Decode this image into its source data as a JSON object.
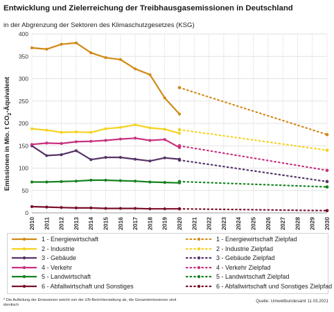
{
  "title": "Entwicklung und Zielerreichung der Treibhausgasemissionen in Deutschland",
  "subtitle": "in der Abgrenzung der Sektoren des Klimaschutzgesetzes (KSG)",
  "ylabel_main": "Emissionen in Mio. t CO",
  "ylabel_sub": "2",
  "ylabel_tail": "-Äquivalent",
  "footnote": "* Die Aufteilung der Emissionen weicht von der UN-Berichterstattung ab, die Gesamtemissionen sind identisch",
  "source": "Quelle: Umweltbundesamt 11.03.2021",
  "chart_data": {
    "type": "line",
    "x": [
      2010,
      2011,
      2012,
      2013,
      2014,
      2015,
      2016,
      2017,
      2018,
      2019,
      2020,
      2021,
      2022,
      2023,
      2024,
      2025,
      2026,
      2027,
      2028,
      2029,
      2030
    ],
    "x_tick_labels": [
      "2010",
      "2011",
      "2012",
      "2013",
      "2014",
      "2015",
      "2016",
      "2017",
      "2018",
      "2019",
      "2020",
      "2021",
      "2022",
      "2023",
      "2024",
      "2025",
      "2026",
      "2027",
      "2028",
      "2029",
      "2030"
    ],
    "ylim": [
      0,
      400
    ],
    "y_ticks": [
      0,
      50,
      100,
      150,
      200,
      250,
      300,
      350,
      400
    ],
    "grid": true,
    "series": [
      {
        "name": "1 - Energiewirtschaft",
        "color": "#d08a14",
        "style": "solid",
        "x": [
          2010,
          2011,
          2012,
          2013,
          2014,
          2015,
          2016,
          2017,
          2018,
          2019,
          2020
        ],
        "values": [
          369,
          366,
          377,
          380,
          358,
          347,
          343,
          322,
          309,
          257,
          221
        ]
      },
      {
        "name": "2 - Industrie",
        "color": "#f5d21e",
        "style": "solid",
        "x": [
          2010,
          2011,
          2012,
          2013,
          2014,
          2015,
          2016,
          2017,
          2018,
          2019,
          2020
        ],
        "values": [
          188,
          185,
          180,
          181,
          180,
          188,
          191,
          197,
          190,
          187,
          178
        ]
      },
      {
        "name": "3 - Gebäude",
        "color": "#553366",
        "style": "solid",
        "x": [
          2010,
          2011,
          2012,
          2013,
          2014,
          2015,
          2016,
          2017,
          2018,
          2019,
          2020
        ],
        "values": [
          150,
          128,
          130,
          139,
          119,
          124,
          124,
          120,
          116,
          123,
          120
        ]
      },
      {
        "name": "4 - Verkehr",
        "color": "#c8317e",
        "style": "solid",
        "x": [
          2010,
          2011,
          2012,
          2013,
          2014,
          2015,
          2016,
          2017,
          2018,
          2019,
          2020
        ],
        "values": [
          153,
          156,
          155,
          159,
          160,
          162,
          165,
          167,
          162,
          164,
          146
        ]
      },
      {
        "name": "5 - Landwirtschaft",
        "color": "#14821e",
        "style": "solid",
        "x": [
          2010,
          2011,
          2012,
          2013,
          2014,
          2015,
          2016,
          2017,
          2018,
          2019,
          2020
        ],
        "values": [
          69,
          69,
          70,
          71,
          73,
          73,
          72,
          71,
          69,
          68,
          67
        ]
      },
      {
        "name": "6 - Abfallwirtschaft und Sonstiges",
        "color": "#7a0f2a",
        "style": "solid",
        "x": [
          2010,
          2011,
          2012,
          2013,
          2014,
          2015,
          2016,
          2017,
          2018,
          2019,
          2020
        ],
        "values": [
          14,
          13,
          12,
          11,
          11,
          10,
          10,
          10,
          9,
          9,
          9
        ]
      },
      {
        "name": "1 - Energiewirtschaft Zielpfad",
        "color": "#d08a14",
        "style": "dotted",
        "x": [
          2020,
          2030
        ],
        "values": [
          280,
          175
        ]
      },
      {
        "name": "2 - Industrie Zielpfad",
        "color": "#f5d21e",
        "style": "dotted",
        "x": [
          2020,
          2030
        ],
        "values": [
          186,
          140
        ]
      },
      {
        "name": "3 - Gebäude Zielpfad",
        "color": "#553366",
        "style": "dotted",
        "x": [
          2020,
          2030
        ],
        "values": [
          118,
          70
        ]
      },
      {
        "name": "4 - Verkehr Zielpfad",
        "color": "#c8317e",
        "style": "dotted",
        "x": [
          2020,
          2030
        ],
        "values": [
          150,
          95
        ]
      },
      {
        "name": "5 - Landwirtschaft Zielpfad",
        "color": "#14821e",
        "style": "dotted",
        "x": [
          2020,
          2030
        ],
        "values": [
          70,
          58
        ]
      },
      {
        "name": "6 - Abfallwirtschaft und Sonstiges Zielpfad",
        "color": "#7a0f2a",
        "style": "dotted",
        "x": [
          2020,
          2030
        ],
        "values": [
          9,
          5
        ]
      }
    ],
    "legend_placement": "bottom"
  }
}
